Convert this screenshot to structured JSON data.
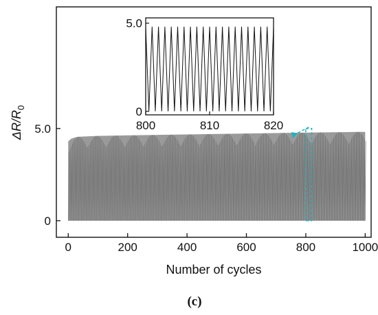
{
  "chart_data": [
    {
      "id": "main",
      "type": "line",
      "xlabel": "Number of cycles",
      "ylabel_main": "ΔR/R",
      "ylabel_sub": "0",
      "xlim": [
        -40,
        1020
      ],
      "ylim": [
        -0.9,
        11.6
      ],
      "xticks": [
        0,
        200,
        400,
        600,
        800,
        1000
      ],
      "xtick_labels": [
        "0",
        "200",
        "400",
        "600",
        "800",
        "1000"
      ],
      "yticks": [
        0,
        5.0
      ],
      "ytick_labels": [
        "0",
        "5.0"
      ],
      "cycles": 1000,
      "series": [
        {
          "min": 0,
          "max_envelope": {
            "x": [
              0,
              10,
              30,
              100,
              200,
              400,
              600,
              800,
              1000
            ],
            "y": [
              4.3,
              4.45,
              4.55,
              4.6,
              4.63,
              4.68,
              4.73,
              4.78,
              4.82
            ]
          },
          "color": "#8c8c8c"
        }
      ],
      "highlight_box": {
        "x": [
          800,
          820
        ],
        "y": [
          0,
          5.0
        ],
        "color": "#1bb3c2"
      }
    },
    {
      "id": "inset",
      "type": "line",
      "xlim": [
        800,
        820
      ],
      "ylim": [
        -0.2,
        5.3
      ],
      "xticks": [
        800,
        810,
        820
      ],
      "xtick_labels": [
        "800",
        "810",
        "820"
      ],
      "yticks": [
        0,
        5.0
      ],
      "ytick_labels": [
        "0",
        "5.0"
      ],
      "cycles_shown": 20,
      "series": [
        {
          "min": 0,
          "max": 4.8,
          "color": "#111111"
        }
      ]
    }
  ],
  "caption": "(c)"
}
